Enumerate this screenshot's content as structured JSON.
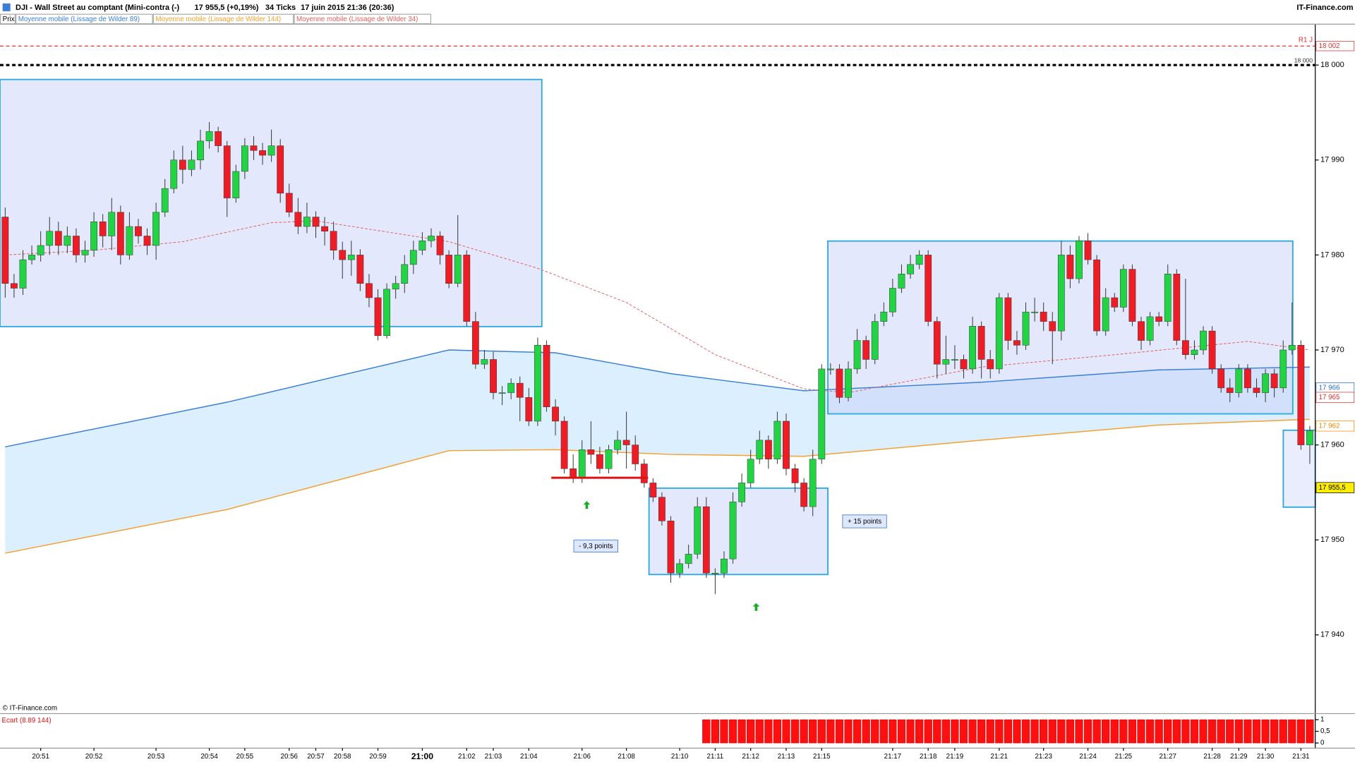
{
  "header": {
    "symbol": "DJI - Wall Street au comptant (Mini-contra (-)",
    "price": "17 955,5 (+0,19%)",
    "ticks": "34 Ticks",
    "date": "17 juin 2015 21:36 (20:36)",
    "brand": "IT-Finance.com"
  },
  "copyright": "© IT-Finance.com",
  "chart_data": [
    {
      "type": "candlestick",
      "price_label": "Prix",
      "up_color": "#22d444",
      "down_color": "#ee1c25",
      "categories": [
        null,
        null,
        null,
        null,
        "20:51",
        null,
        null,
        null,
        null,
        null,
        "20:52",
        null,
        null,
        null,
        null,
        null,
        null,
        "20:53",
        null,
        null,
        null,
        null,
        null,
        "20:54",
        null,
        null,
        null,
        "20:55",
        null,
        null,
        null,
        null,
        "20:56",
        null,
        null,
        "20:57",
        null,
        null,
        "20:58",
        null,
        null,
        null,
        "20:59",
        null,
        null,
        null,
        null,
        "21:00",
        null,
        null,
        null,
        null,
        "21:02",
        null,
        null,
        "21:03",
        null,
        null,
        null,
        "21:04",
        null,
        null,
        null,
        null,
        null,
        "21:06",
        null,
        null,
        null,
        null,
        "21:08",
        null,
        null,
        null,
        null,
        null,
        "21:10",
        null,
        null,
        null,
        "21:11",
        null,
        null,
        null,
        "21:12",
        null,
        null,
        null,
        "21:13",
        null,
        null,
        null,
        "21:15",
        null,
        null,
        null,
        null,
        null,
        null,
        null,
        "21:17",
        null,
        null,
        null,
        "21:18",
        null,
        null,
        "21:19",
        null,
        null,
        null,
        null,
        "21:21",
        null,
        null,
        null,
        null,
        "21:23",
        null,
        null,
        null,
        null,
        "21:24",
        null,
        null,
        null,
        "21:25",
        null,
        null,
        null,
        null,
        "21:27",
        null,
        null,
        null,
        null,
        "21:28",
        null,
        null,
        "21:29",
        null,
        null,
        "21:30",
        null,
        null,
        null,
        "21:31",
        null
      ],
      "open": [
        17984,
        17977,
        17976.5,
        17979.5,
        17980,
        17981,
        17982.5,
        17981,
        17982,
        17980,
        17980.5,
        17983.5,
        17982,
        17984.5,
        17980,
        17983,
        17982,
        17981,
        17984.5,
        17987,
        17990,
        17989,
        17990,
        17992,
        17993,
        17991.5,
        17986,
        17988.8,
        17991.5,
        17991,
        17990.5,
        17991.5,
        17986.5,
        17984.5,
        17983,
        17984,
        17983,
        17982.5,
        17980.5,
        17979.5,
        17980,
        17977,
        17975.5,
        17971.5,
        17976.4,
        17977,
        17979,
        17980.5,
        17981.5,
        17982,
        17980,
        17977,
        17980,
        17973,
        17968.5,
        17969,
        17965.5,
        17965.5,
        17966.5,
        17965,
        17962.5,
        17970.5,
        17964,
        17962.5,
        17957.5,
        17956.5,
        17959.5,
        17959,
        17957.5,
        17959.5,
        17960.5,
        17960,
        17958,
        17956,
        17954.5,
        17952,
        17946.5,
        17947.5,
        17948.5,
        17953.5,
        17946.5,
        17946.5,
        17948,
        17954,
        17956,
        17958.5,
        17960.5,
        17958.5,
        17962.5,
        17957.5,
        17956,
        17953.5,
        17958.5,
        17968,
        17968,
        17965,
        17968,
        17971,
        17969,
        17973,
        17974,
        17976.5,
        17978,
        17979,
        17980,
        17973,
        17968.5,
        17969,
        17969,
        17968,
        17972.5,
        17969,
        17968,
        17975.5,
        17971,
        17970.5,
        17974,
        17974,
        17973,
        17972,
        17980,
        17977.5,
        17981.5,
        17979.5,
        17972,
        17975.5,
        17974.5,
        17978.5,
        17973,
        17971,
        17973.5,
        17973,
        17978,
        17971,
        17969.5,
        17970,
        17972,
        17968,
        17966,
        17965.5,
        17968,
        17966,
        17965.5,
        17967.5,
        17966,
        17970,
        17970.5,
        17960
      ],
      "high": [
        17985,
        17978,
        17980.5,
        17981,
        17982.5,
        17984,
        17983.5,
        17983,
        17982.8,
        17981.5,
        17984.5,
        17984.3,
        17986,
        17985.2,
        17984.5,
        17983.8,
        17982.8,
        17985.5,
        17988,
        17991,
        17991.5,
        17991,
        17993.2,
        17994,
        17993.5,
        17992,
        17989.5,
        17992.3,
        17992.5,
        17991.8,
        17993.2,
        17992.2,
        17987.5,
        17986,
        17985.5,
        17984.6,
        17984,
        17983.5,
        17981.4,
        17981.5,
        17980.6,
        17978,
        17976.4,
        17977,
        17977.8,
        17980,
        17981.5,
        17982.4,
        17982.8,
        17982.5,
        17980.5,
        17984.2,
        17980.5,
        17974,
        17970,
        17969.8,
        17966.2,
        17967,
        17967.2,
        17966,
        17971.3,
        17971,
        17964.8,
        17963,
        17959,
        17960.5,
        17962.5,
        17959.8,
        17960,
        17961.5,
        17963.5,
        17961,
        17958.5,
        17956.5,
        17955,
        17952.5,
        17948,
        17949.5,
        17954.5,
        17954.5,
        17947,
        17948.8,
        17955,
        17957,
        17959.5,
        17961.5,
        17961,
        17963.5,
        17963.3,
        17958,
        17956.5,
        17959.5,
        17968.5,
        17968.6,
        17968.5,
        17968.8,
        17972.2,
        17971.5,
        17973.8,
        17975,
        17977.5,
        17979,
        17980,
        17980.5,
        17980.5,
        17973.5,
        17971.5,
        17970.5,
        17969.5,
        17973.5,
        17973,
        17970,
        17976,
        17976,
        17972,
        17975,
        17975.5,
        17975,
        17974,
        17981.5,
        17981,
        17982,
        17982.3,
        17980,
        17976.5,
        17976,
        17979,
        17979,
        17973.5,
        17974,
        17974,
        17979,
        17978.5,
        17977.5,
        17971,
        17972.5,
        17972.5,
        17968.5,
        17967,
        17968.5,
        17968.5,
        17967,
        17968,
        17968,
        17971,
        17975,
        17971,
        17962
      ],
      "low": [
        17975.5,
        17975.5,
        17975.8,
        17979,
        17979.3,
        17980,
        17980,
        17980.2,
        17979.2,
        17979.2,
        17979.8,
        17980.8,
        17980.5,
        17979,
        17979.5,
        17981.2,
        17980,
        17979.5,
        17984,
        17986.5,
        17987.5,
        17988.3,
        17989,
        17991.2,
        17990.8,
        17984,
        17985.5,
        17988,
        17990,
        17989.5,
        17989.8,
        17985.5,
        17984,
        17982.2,
        17982.3,
        17981.8,
        17981,
        17979.5,
        17977.5,
        17977.8,
        17976.2,
        17974.5,
        17971,
        17971.2,
        17975.4,
        17976,
        17978,
        17980,
        17980.8,
        17979,
        17976.5,
        17976.6,
        17972.5,
        17968,
        17968,
        17964.8,
        17964.2,
        17964.8,
        17962.5,
        17962,
        17962,
        17963.5,
        17961,
        17957,
        17956,
        17956,
        17958,
        17957,
        17957,
        17959,
        17957.5,
        17957.3,
        17955.5,
        17954,
        17951.5,
        17945.5,
        17946,
        17947,
        17948,
        17946,
        17944.3,
        17946,
        17947.5,
        17953.5,
        17955.5,
        17958,
        17957.5,
        17958,
        17956.8,
        17955,
        17953,
        17952.5,
        17958,
        17967.4,
        17964.4,
        17964.6,
        17967.5,
        17968,
        17968.5,
        17972.5,
        17973.5,
        17976,
        17977.5,
        17978.5,
        17972.5,
        17967,
        17967.5,
        17968,
        17967,
        17967.5,
        17967,
        17967,
        17967.5,
        17970,
        17969.5,
        17970,
        17973,
        17972,
        17968.5,
        17971,
        17976.5,
        17977,
        17979,
        17971.5,
        17971.5,
        17974,
        17974,
        17972.5,
        17970,
        17970.5,
        17972.5,
        17972.5,
        17970.5,
        17969,
        17969,
        17969.5,
        17967.5,
        17965.5,
        17964.5,
        17965,
        17965.5,
        17965,
        17964.5,
        17965,
        17965.5,
        17969.5,
        17959.5,
        17958
      ],
      "close": [
        17977,
        17976.5,
        17979.5,
        17980,
        17981,
        17982.5,
        17981,
        17982,
        17980,
        17980.5,
        17983.5,
        17982,
        17984.5,
        17980,
        17983,
        17982,
        17981,
        17984.5,
        17987,
        17990,
        17989,
        17990,
        17992,
        17993,
        17991.5,
        17986,
        17988.8,
        17991.5,
        17991,
        17990.5,
        17991.5,
        17986.5,
        17984.5,
        17983,
        17984,
        17983,
        17982.5,
        17980.5,
        17979.5,
        17980,
        17977,
        17975.5,
        17971.5,
        17976.4,
        17977,
        17979,
        17980.5,
        17981.5,
        17982,
        17980,
        17977,
        17980,
        17973,
        17968.5,
        17969,
        17965.5,
        17965.5,
        17966.5,
        17965,
        17962.5,
        17970.5,
        17964,
        17962.5,
        17957.5,
        17956.5,
        17959.5,
        17959,
        17957.5,
        17959.5,
        17960.5,
        17960,
        17958,
        17956,
        17954.5,
        17952,
        17946.5,
        17947.5,
        17948.5,
        17953.5,
        17946.5,
        17946.5,
        17948,
        17954,
        17956,
        17958.5,
        17960.5,
        17958.5,
        17962.5,
        17957.5,
        17956,
        17953.5,
        17958.5,
        17968,
        17968,
        17965,
        17968,
        17971,
        17969,
        17973,
        17974,
        17976.5,
        17978,
        17979,
        17980,
        17973,
        17968.5,
        17969,
        17969,
        17968,
        17972.5,
        17969,
        17968,
        17975.5,
        17971,
        17970.5,
        17974,
        17974,
        17973,
        17972,
        17980,
        17977.5,
        17981.5,
        17979.5,
        17972,
        17975.5,
        17974.5,
        17978.5,
        17973,
        17971,
        17973.5,
        17973,
        17978,
        17971,
        17969.5,
        17970,
        17972,
        17968,
        17966,
        17965.5,
        17968,
        17966,
        17965.5,
        17967.5,
        17966,
        17970,
        17970.5,
        17960,
        17961.5
      ],
      "moving_averages": [
        {
          "name": "Moyenne mobile (Lissage de Wilder 89)",
          "color": "#3a7fd5",
          "dashed": false,
          "x": [
            0,
            25,
            50,
            62,
            75,
            90,
            110,
            130,
            147
          ],
          "values": [
            17959.8,
            17964.5,
            17970,
            17969.7,
            17967.5,
            17965.7,
            17966.6,
            17967.9,
            17968.2
          ]
        },
        {
          "name": "Moyenne mobile (Lissage de Wilder 144)",
          "color": "#f5a030",
          "dashed": false,
          "x": [
            0,
            25,
            50,
            62,
            75,
            90,
            110,
            130,
            147
          ],
          "values": [
            17948.6,
            17953.2,
            17959.4,
            17959.5,
            17959,
            17958.8,
            17960.5,
            17962.1,
            17962.7
          ]
        },
        {
          "name": "Moyenne mobile (Lissage de Wilder 34)",
          "color": "#e06060",
          "dashed": true,
          "x": [
            0,
            10,
            20,
            30,
            35,
            50,
            60,
            70,
            80,
            90,
            95,
            110,
            125,
            140,
            147
          ],
          "values": [
            17980,
            17980.5,
            17981.4,
            17983.4,
            17983.6,
            17981.4,
            17978.6,
            17975,
            17969.5,
            17965.9,
            17965.5,
            17968.2,
            17969.5,
            17970.9,
            17970
          ]
        }
      ],
      "band_color": "#dcefff",
      "levels": [
        {
          "name": "R1 J",
          "value": 18002,
          "label": "18 002",
          "color": "#e03030",
          "dashed": true,
          "width": 1
        },
        {
          "value": 18000,
          "label": "18 000",
          "color": "#000000",
          "dashed": true,
          "width": 2.5
        }
      ],
      "price_tags": [
        {
          "value": 17966,
          "label": "17 966",
          "color": "#2a6fd0",
          "bg": "#ffffff"
        },
        {
          "value": 17965,
          "label": "17 965",
          "color": "#e03030",
          "bg": "#ffffff"
        },
        {
          "value": 17962,
          "label": "17 962",
          "color": "#f08a00",
          "bg": "#ffffff"
        },
        {
          "value": 17955.5,
          "label": "17 955,5",
          "color": "#000000",
          "bg": "#ffee00"
        }
      ],
      "annotations": [
        "- 9,3 points",
        "+ 15 points"
      ],
      "ylim": [
        17931.8,
        18004.3
      ],
      "yticks": [
        {
          "value": 18000,
          "label": "18 000"
        },
        {
          "value": 17990,
          "label": "17 990"
        },
        {
          "value": 17980,
          "label": "17 980"
        },
        {
          "value": 17970,
          "label": "17 970"
        },
        {
          "value": 17960,
          "label": "17 960"
        },
        {
          "value": 17950,
          "label": "17 950"
        },
        {
          "value": 17940,
          "label": "17 940"
        }
      ],
      "grid": false
    },
    {
      "type": "bar",
      "title": "Ecart (8.89 144)",
      "color": "#ff1010",
      "values": [
        0,
        0,
        0,
        0,
        0,
        0,
        0,
        0,
        0,
        0,
        0,
        0,
        0,
        0,
        0,
        0,
        0,
        0,
        0,
        0,
        0,
        0,
        0,
        0,
        0,
        0,
        0,
        0,
        0,
        0,
        0,
        0,
        0,
        0,
        0,
        0,
        0,
        0,
        0,
        0,
        0,
        0,
        0,
        0,
        0,
        0,
        0,
        0,
        0,
        0,
        0,
        0,
        0,
        0,
        0,
        0,
        0,
        0,
        0,
        0,
        0,
        0,
        0,
        0,
        0,
        0,
        0,
        0,
        0,
        0,
        0,
        0,
        0,
        0,
        0,
        0,
        0,
        0,
        0,
        1,
        1,
        1,
        1,
        1,
        1,
        1,
        1,
        1,
        1,
        1,
        1,
        1,
        1,
        1,
        1,
        1,
        1,
        1,
        1,
        1,
        1,
        1,
        1,
        1,
        1,
        1,
        1,
        1,
        1,
        1,
        1,
        1,
        1,
        1,
        1,
        1,
        1,
        1,
        1,
        1,
        1,
        1,
        1,
        1,
        1,
        1,
        1,
        1,
        1,
        1,
        1,
        1,
        1,
        1,
        1,
        1,
        1,
        1,
        1,
        1,
        1,
        1,
        1,
        1,
        1,
        1,
        1,
        1
      ],
      "ylim": [
        -0.185,
        1.185
      ],
      "yticks": [
        1,
        {
          "value": 0.5,
          "label": "0,5"
        },
        0
      ]
    }
  ]
}
